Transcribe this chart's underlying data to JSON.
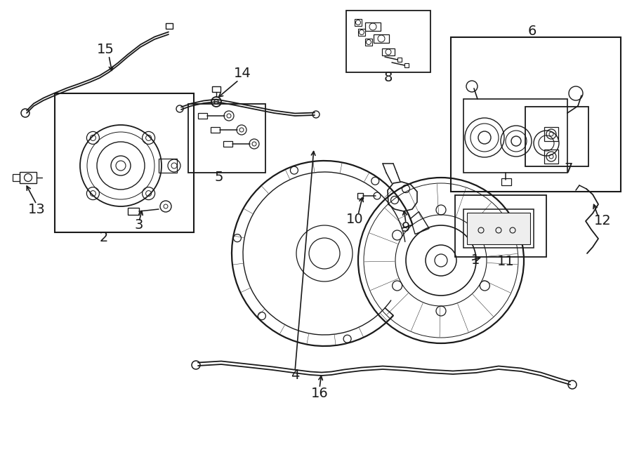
{
  "bg_color": "#ffffff",
  "lc": "#1a1a1a",
  "figsize": [
    9.0,
    6.61
  ],
  "dpi": 100
}
